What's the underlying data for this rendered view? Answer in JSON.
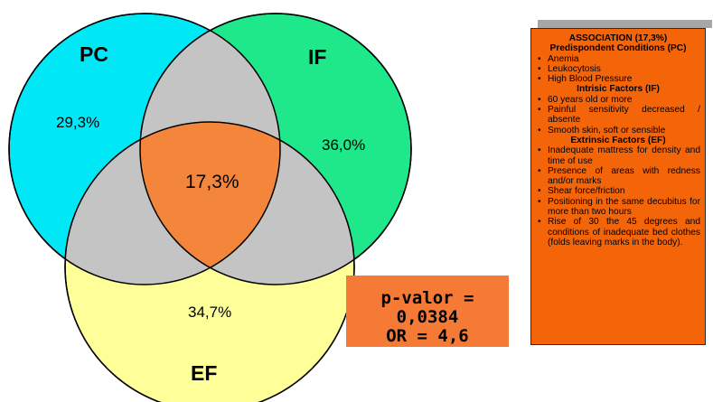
{
  "venn": {
    "sets": [
      {
        "name": "PC",
        "color": "#00e8f6",
        "value": "29,3%"
      },
      {
        "name": "IF",
        "color": "#1ee88a",
        "value": "36,0%"
      },
      {
        "name": "EF",
        "color": "#ffff9a",
        "value": "34,7%"
      }
    ],
    "overlap_color": "#c4c4c4",
    "center_color": "#f4863c",
    "center_value": "17,3%"
  },
  "stats": {
    "line1": "p-valor = 0,0384",
    "line2": "OR = 4,6"
  },
  "panel": {
    "title": "ASSOCIATION (17,3%)",
    "sections": [
      {
        "heading": "Predispondent Conditions (PC)",
        "items": [
          "Anemia",
          "Leukocytosis",
          "High Blood Pressure"
        ]
      },
      {
        "heading": "Intrisic Factors (IF)",
        "items": [
          "60 years old or more",
          "Painful sensitivity decreased / absente",
          "Smooth skin, soft or sensible"
        ]
      },
      {
        "heading": "Extrinsic Factors (EF)",
        "items": [
          "Inadequate mattress for density and time of use",
          "Presence of areas with redness and/or marks",
          "Shear force/friction",
          "Positioning in the same decubitus for more than two hours",
          "Rise of 30 the 45 degrees and conditions of inadequate bed clothes (folds leaving marks in the body)."
        ]
      }
    ]
  }
}
